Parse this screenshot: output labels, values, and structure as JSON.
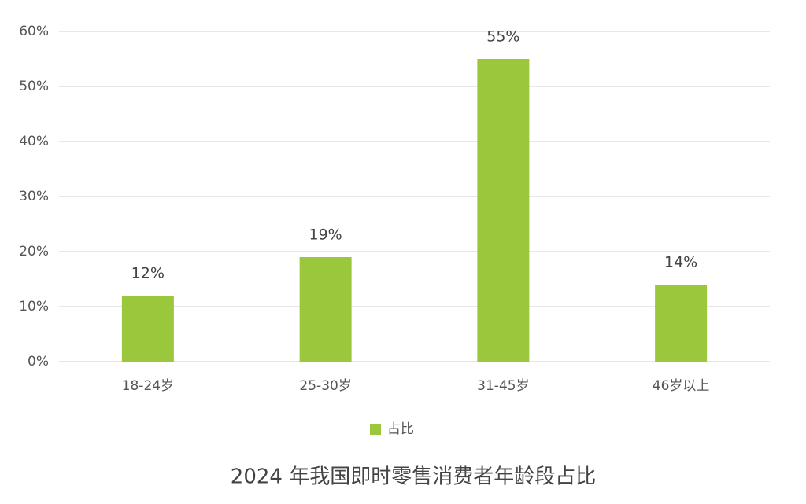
{
  "chart_data": {
    "type": "bar",
    "title": "2024 年我国即时零售消费者年龄段占比",
    "categories": [
      "18-24岁",
      "25-30岁",
      "31-45岁",
      "46岁以上"
    ],
    "series": [
      {
        "name": "占比",
        "color": "#9ac73b",
        "values": [
          12,
          19,
          55,
          14
        ],
        "value_labels": [
          "12%",
          "19%",
          "55%",
          "14%"
        ]
      }
    ],
    "ylim": [
      0,
      60
    ],
    "yticks": [
      {
        "value": 0,
        "label": "0%"
      },
      {
        "value": 10,
        "label": "10%"
      },
      {
        "value": 20,
        "label": "20%"
      },
      {
        "value": 30,
        "label": "30%"
      },
      {
        "value": 40,
        "label": "40%"
      },
      {
        "value": 50,
        "label": "50%"
      },
      {
        "value": 60,
        "label": "60%"
      }
    ],
    "grid": true,
    "legend": "bottom"
  }
}
